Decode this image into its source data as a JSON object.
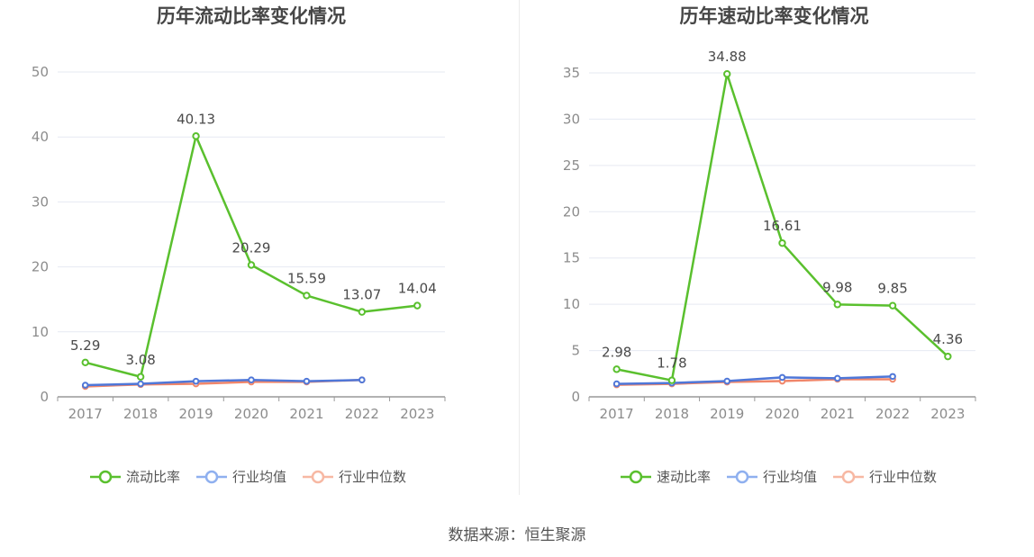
{
  "colors": {
    "main": "#5ac02e",
    "avg": "#4f77d8",
    "median": "#f0866a",
    "avg_legend": "#8fb0ef",
    "median_legend": "#f7b8a3",
    "grid": "#e6e9f2",
    "axis": "#999999"
  },
  "chart_data": [
    {
      "type": "line",
      "title": "历年流动比率变化情况",
      "categories": [
        "2017",
        "2018",
        "2019",
        "2020",
        "2021",
        "2022",
        "2023"
      ],
      "ylim": [
        0,
        50
      ],
      "yticks": [
        0,
        10,
        20,
        30,
        40,
        50
      ],
      "grid": true,
      "legend_position": "bottom",
      "series": [
        {
          "name": "流动比率",
          "values": [
            5.29,
            3.08,
            40.13,
            20.29,
            15.59,
            13.07,
            14.04
          ],
          "labels": [
            "5.29",
            "3.08",
            "40.13",
            "20.29",
            "15.59",
            "13.07",
            "14.04"
          ]
        },
        {
          "name": "行业均值",
          "values": [
            1.8,
            2.0,
            2.4,
            2.6,
            2.4,
            2.6,
            null
          ]
        },
        {
          "name": "行业中位数",
          "values": [
            1.6,
            1.9,
            2.0,
            2.3,
            2.3,
            2.6,
            null
          ]
        }
      ]
    },
    {
      "type": "line",
      "title": "历年速动比率变化情况",
      "categories": [
        "2017",
        "2018",
        "2019",
        "2020",
        "2021",
        "2022",
        "2023"
      ],
      "ylim": [
        0,
        35
      ],
      "yticks": [
        0,
        5,
        10,
        15,
        20,
        25,
        30,
        35
      ],
      "grid": true,
      "legend_position": "bottom",
      "series": [
        {
          "name": "速动比率",
          "values": [
            2.98,
            1.78,
            34.88,
            16.61,
            9.98,
            9.85,
            4.36
          ],
          "labels": [
            "2.98",
            "1.78",
            "34.88",
            "16.61",
            "9.98",
            "9.85",
            "4.36"
          ]
        },
        {
          "name": "行业均值",
          "values": [
            1.4,
            1.5,
            1.7,
            2.1,
            2.0,
            2.2,
            null
          ]
        },
        {
          "name": "行业中位数",
          "values": [
            1.3,
            1.4,
            1.6,
            1.7,
            1.9,
            1.9,
            null
          ]
        }
      ]
    }
  ],
  "source": "数据来源：恒生聚源"
}
